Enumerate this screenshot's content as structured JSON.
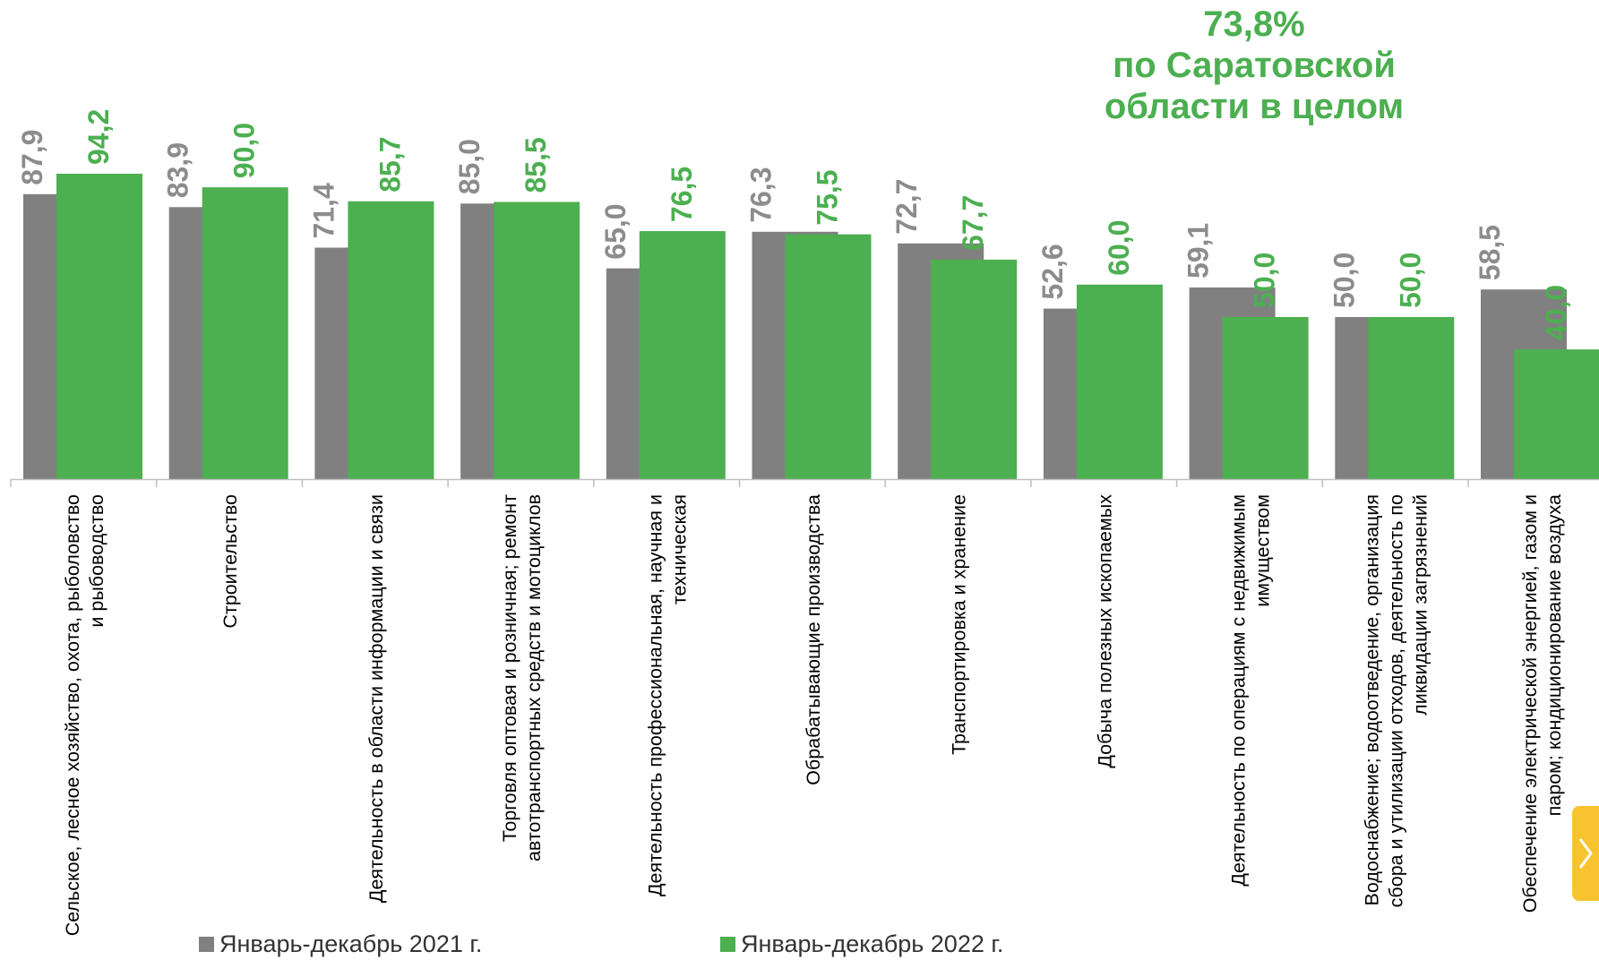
{
  "chart_data": {
    "type": "bar",
    "categories": [
      "Сельское, лесное хозяйство, охота, рыболовство и  рыбоводство",
      "Строительство",
      "Деятельность в области информации и связи",
      "Торговля оптовая и розничная; ремонт автотранспортных средств и мотоциклов",
      "Деятельность профессиональная, научная и техническая",
      "Обрабатывающие производства",
      "Транспортировка и хранение",
      "Добыча полезных ископаемых",
      "Деятельность по операциям с недвижимым имуществом",
      "Водоснабжение; водоотведение, организация сбора и утилизации отходов, деятельность по ликвидации загрязнений",
      "Обеспечение электрической энергией, газом и паром; кондиционирование воздуха"
    ],
    "series": [
      {
        "name": "Январь-декабрь  2021 г.",
        "color": "#808080",
        "label_color": "#8c8c8c",
        "values": [
          87.9,
          83.9,
          71.4,
          85.0,
          65.0,
          76.3,
          72.7,
          52.6,
          59.1,
          50.0,
          58.5
        ],
        "labels": [
          "87,9",
          "83,9",
          "71,4",
          "85,0",
          "65,0",
          "76,3",
          "72,7",
          "52,6",
          "59,1",
          "50,0",
          "58,5"
        ]
      },
      {
        "name": "Январь-декабрь  2022 г.",
        "color": "#4caf50",
        "label_color": "#4caf50",
        "values": [
          94.2,
          90.0,
          85.7,
          85.5,
          76.5,
          75.5,
          67.7,
          60.0,
          50.0,
          50.0,
          40.0
        ],
        "labels": [
          "94,2",
          "90,0",
          "85,7",
          "85,5",
          "76,5",
          "75,5",
          "67,7",
          "60,0",
          "50,0",
          "50,0",
          "40,0"
        ]
      }
    ],
    "ylim": [
      0,
      100
    ],
    "grid": false,
    "legend_position": "bottom",
    "annotation": {
      "value": "73,8%",
      "line1": "по Саратовской",
      "line2": "области в целом"
    }
  },
  "nav": {
    "icon": "chevron-right-icon"
  }
}
